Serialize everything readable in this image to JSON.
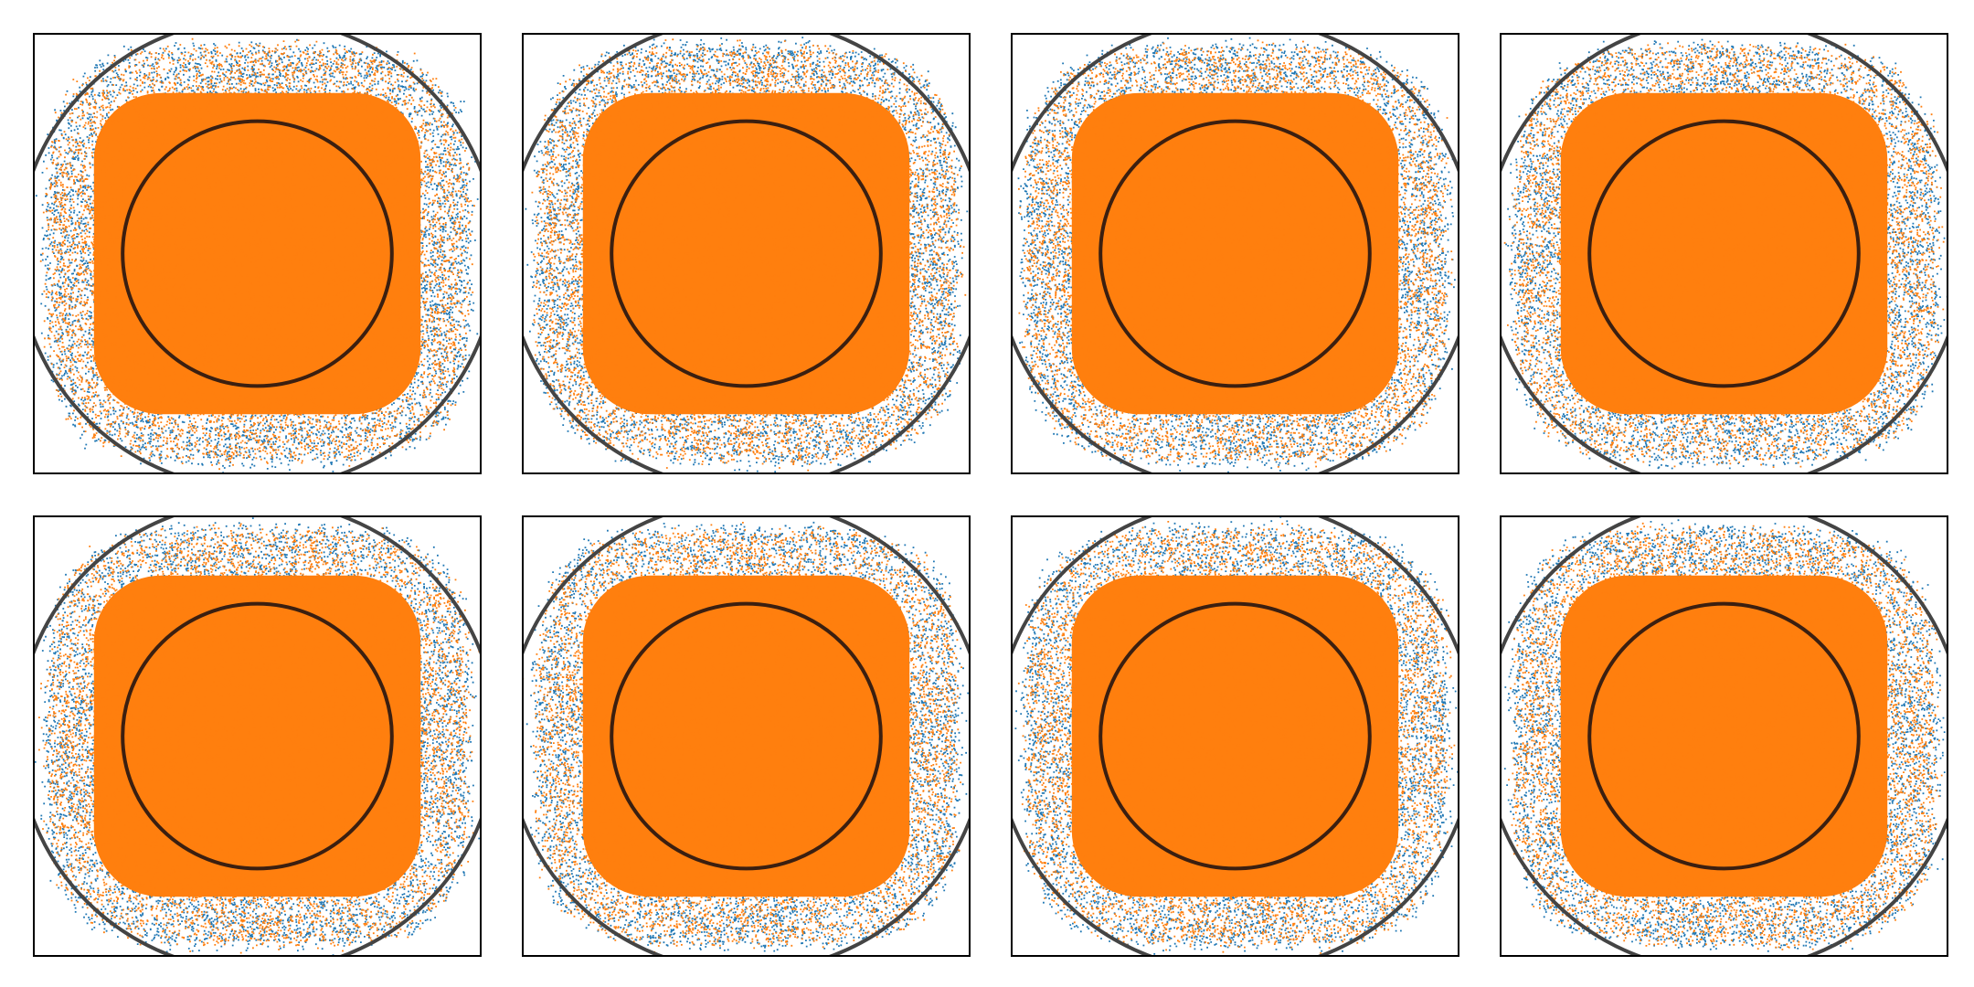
{
  "figure": {
    "rows": 2,
    "cols": 4
  },
  "chart_data": [
    {
      "type": "scatter",
      "panel": 1,
      "xlim": [
        -1.5,
        1.5
      ],
      "ylim": [
        -1.5,
        1.5
      ],
      "grid": false,
      "axes_ticks": false,
      "seed": 11,
      "series": [
        {
          "color": "#1f77b4",
          "points": 9000,
          "density_shape": "rounded-square",
          "half_extent": 1.42
        },
        {
          "color": "#ff7f0e",
          "points": 9000,
          "density_shape": "rounded-square",
          "half_extent": 1.4
        }
      ],
      "circles": [
        {
          "radius": 0.9,
          "color": "#3b1f10"
        },
        {
          "radius": 1.6,
          "color": "#444444"
        }
      ]
    },
    {
      "type": "scatter",
      "panel": 2,
      "xlim": [
        -1.5,
        1.5
      ],
      "ylim": [
        -1.5,
        1.5
      ],
      "grid": false,
      "axes_ticks": false,
      "seed": 23,
      "series": [
        {
          "color": "#1f77b4",
          "points": 9000,
          "density_shape": "rounded-square",
          "half_extent": 1.42
        },
        {
          "color": "#ff7f0e",
          "points": 9000,
          "density_shape": "rounded-square",
          "half_extent": 1.4
        }
      ],
      "circles": [
        {
          "radius": 0.9,
          "color": "#3b1f10"
        },
        {
          "radius": 1.6,
          "color": "#444444"
        }
      ]
    },
    {
      "type": "scatter",
      "panel": 3,
      "xlim": [
        -1.5,
        1.5
      ],
      "ylim": [
        -1.5,
        1.5
      ],
      "grid": false,
      "axes_ticks": false,
      "seed": 37,
      "series": [
        {
          "color": "#1f77b4",
          "points": 9000,
          "density_shape": "rounded-square",
          "half_extent": 1.42
        },
        {
          "color": "#ff7f0e",
          "points": 9000,
          "density_shape": "rounded-square",
          "half_extent": 1.4
        }
      ],
      "circles": [
        {
          "radius": 0.9,
          "color": "#3b1f10"
        },
        {
          "radius": 1.6,
          "color": "#444444"
        }
      ]
    },
    {
      "type": "scatter",
      "panel": 4,
      "xlim": [
        -1.5,
        1.5
      ],
      "ylim": [
        -1.5,
        1.5
      ],
      "grid": false,
      "axes_ticks": false,
      "seed": 41,
      "series": [
        {
          "color": "#1f77b4",
          "points": 9000,
          "density_shape": "rounded-square",
          "half_extent": 1.42
        },
        {
          "color": "#ff7f0e",
          "points": 9000,
          "density_shape": "rounded-square",
          "half_extent": 1.4
        }
      ],
      "circles": [
        {
          "radius": 0.9,
          "color": "#3b1f10"
        },
        {
          "radius": 1.6,
          "color": "#444444"
        }
      ]
    },
    {
      "type": "scatter",
      "panel": 5,
      "xlim": [
        -1.5,
        1.5
      ],
      "ylim": [
        -1.5,
        1.5
      ],
      "grid": false,
      "axes_ticks": false,
      "seed": 53,
      "series": [
        {
          "color": "#1f77b4",
          "points": 9000,
          "density_shape": "rounded-square",
          "half_extent": 1.42
        },
        {
          "color": "#ff7f0e",
          "points": 9000,
          "density_shape": "rounded-square",
          "half_extent": 1.4
        }
      ],
      "circles": [
        {
          "radius": 0.9,
          "color": "#3b1f10"
        },
        {
          "radius": 1.6,
          "color": "#444444"
        }
      ]
    },
    {
      "type": "scatter",
      "panel": 6,
      "xlim": [
        -1.5,
        1.5
      ],
      "ylim": [
        -1.5,
        1.5
      ],
      "grid": false,
      "axes_ticks": false,
      "seed": 67,
      "series": [
        {
          "color": "#1f77b4",
          "points": 9000,
          "density_shape": "rounded-square",
          "half_extent": 1.42
        },
        {
          "color": "#ff7f0e",
          "points": 9000,
          "density_shape": "rounded-square",
          "half_extent": 1.4
        }
      ],
      "circles": [
        {
          "radius": 0.9,
          "color": "#3b1f10"
        },
        {
          "radius": 1.6,
          "color": "#444444"
        }
      ]
    },
    {
      "type": "scatter",
      "panel": 7,
      "xlim": [
        -1.5,
        1.5
      ],
      "ylim": [
        -1.5,
        1.5
      ],
      "grid": false,
      "axes_ticks": false,
      "seed": 79,
      "series": [
        {
          "color": "#1f77b4",
          "points": 9000,
          "density_shape": "rounded-square",
          "half_extent": 1.42
        },
        {
          "color": "#ff7f0e",
          "points": 9000,
          "density_shape": "rounded-square",
          "half_extent": 1.4
        }
      ],
      "circles": [
        {
          "radius": 0.9,
          "color": "#3b1f10"
        },
        {
          "radius": 1.6,
          "color": "#444444"
        }
      ]
    },
    {
      "type": "scatter",
      "panel": 8,
      "xlim": [
        -1.5,
        1.5
      ],
      "ylim": [
        -1.5,
        1.5
      ],
      "grid": false,
      "axes_ticks": false,
      "seed": 83,
      "series": [
        {
          "color": "#1f77b4",
          "points": 9000,
          "density_shape": "rounded-square",
          "half_extent": 1.42
        },
        {
          "color": "#ff7f0e",
          "points": 9000,
          "density_shape": "rounded-square",
          "half_extent": 1.4
        }
      ],
      "circles": [
        {
          "radius": 0.9,
          "color": "#3b1f10"
        },
        {
          "radius": 1.6,
          "color": "#444444"
        }
      ]
    }
  ]
}
